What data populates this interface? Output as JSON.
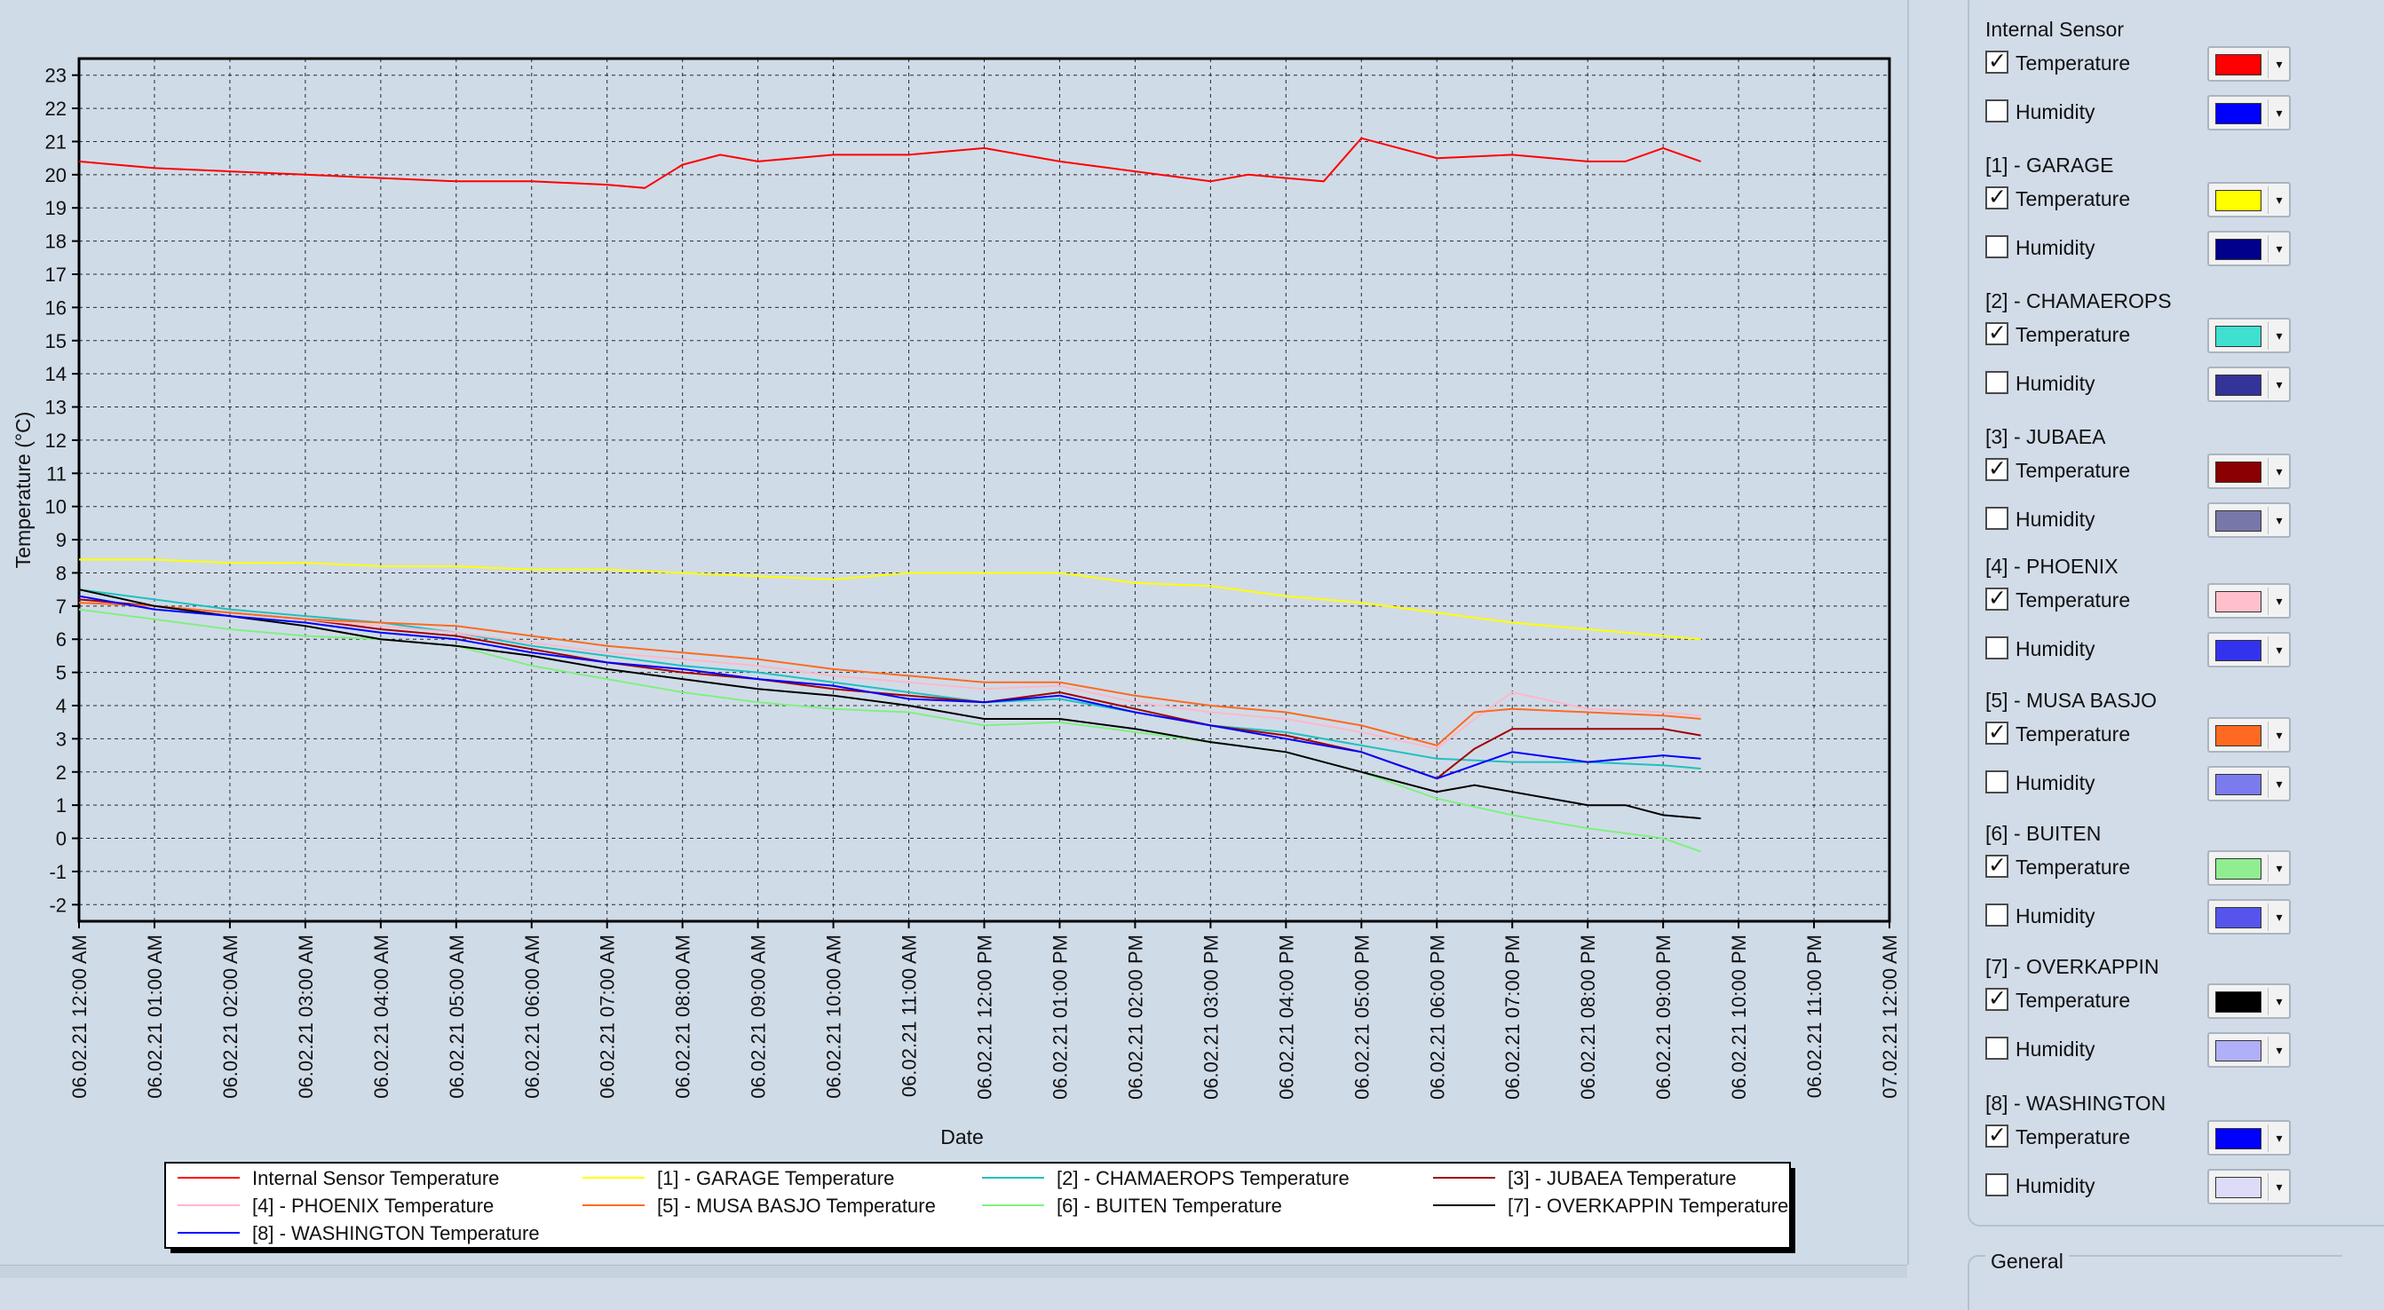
{
  "chart_data": {
    "type": "line",
    "title": "",
    "xlabel": "Date",
    "ylabel": "Temperature (°C)",
    "ylim": [
      -2.5,
      23.5
    ],
    "y_ticks": [
      "23",
      "22",
      "21",
      "20",
      "19",
      "18",
      "17",
      "16",
      "15",
      "14",
      "13",
      "12",
      "11",
      "10",
      "9",
      "8",
      "7",
      "6",
      "5",
      "4",
      "3",
      "2",
      "1",
      "0",
      "-1",
      "-2"
    ],
    "x_range": [
      "06.02.21 12:00 AM",
      "07.02.21 12:00 AM"
    ],
    "x_ticks": [
      "06.02.21 12:00 AM",
      "06.02.21 01:00 AM",
      "06.02.21 02:00 AM",
      "06.02.21 03:00 AM",
      "06.02.21 04:00 AM",
      "06.02.21 05:00 AM",
      "06.02.21 06:00 AM",
      "06.02.21 07:00 AM",
      "06.02.21 08:00 AM",
      "06.02.21 09:00 AM",
      "06.02.21 10:00 AM",
      "06.02.21 11:00 AM",
      "06.02.21 12:00 PM",
      "06.02.21 01:00 PM",
      "06.02.21 02:00 PM",
      "06.02.21 03:00 PM",
      "06.02.21 04:00 PM",
      "06.02.21 05:00 PM",
      "06.02.21 06:00 PM",
      "06.02.21 07:00 PM",
      "06.02.21 08:00 PM",
      "06.02.21 09:00 PM",
      "06.02.21 10:00 PM",
      "06.02.21 11:00 PM",
      "07.02.21 12:00 AM"
    ],
    "x_unit": "hours after 06.02.21 12:00 AM",
    "grid": true,
    "legend_position": "bottom",
    "series": [
      {
        "name": "Internal Sensor Temperature",
        "color": "#ff0000",
        "x": [
          0,
          1,
          2,
          3,
          4,
          5,
          6,
          7,
          7.5,
          8,
          8.5,
          9,
          10,
          11,
          12,
          13,
          14,
          15,
          15.5,
          16,
          16.5,
          17,
          18,
          19,
          20,
          20.5,
          21,
          21.5
        ],
        "y": [
          20.4,
          20.2,
          20.1,
          20.0,
          19.9,
          19.8,
          19.8,
          19.7,
          19.6,
          20.3,
          20.6,
          20.4,
          20.6,
          20.6,
          20.8,
          20.4,
          20.1,
          19.8,
          20.0,
          19.9,
          19.8,
          21.1,
          20.5,
          20.6,
          20.4,
          20.4,
          20.8,
          20.4
        ]
      },
      {
        "name": "[1] - GARAGE Temperature",
        "color": "#ffff00",
        "x": [
          0,
          1,
          2,
          3,
          4,
          5,
          6,
          7,
          8,
          9,
          10,
          11,
          12,
          13,
          14,
          15,
          16,
          17,
          18,
          19,
          20,
          21,
          21.5
        ],
        "y": [
          8.4,
          8.4,
          8.3,
          8.3,
          8.2,
          8.2,
          8.1,
          8.1,
          8.0,
          7.9,
          7.8,
          8.0,
          8.0,
          8.0,
          7.7,
          7.6,
          7.3,
          7.1,
          6.8,
          6.5,
          6.3,
          6.1,
          6.0
        ]
      },
      {
        "name": "[2] - CHAMAEROPS Temperature",
        "color": "#20c0c0",
        "x": [
          0,
          1,
          2,
          3,
          4,
          5,
          6,
          7,
          8,
          9,
          10,
          11,
          12,
          13,
          14,
          15,
          16,
          17,
          18,
          19,
          20,
          21,
          21.5
        ],
        "y": [
          7.5,
          7.2,
          6.9,
          6.7,
          6.5,
          6.2,
          5.8,
          5.5,
          5.2,
          5.0,
          4.7,
          4.4,
          4.1,
          4.2,
          3.8,
          3.4,
          3.2,
          2.8,
          2.4,
          2.3,
          2.3,
          2.2,
          2.1
        ]
      },
      {
        "name": "[3] - JUBAEA Temperature",
        "color": "#a00000",
        "x": [
          0,
          1,
          2,
          3,
          4,
          5,
          6,
          7,
          8,
          9,
          10,
          11,
          12,
          13,
          14,
          15,
          16,
          17,
          18,
          18.5,
          19,
          20,
          21,
          21.5
        ],
        "y": [
          7.2,
          7.0,
          6.8,
          6.6,
          6.3,
          6.1,
          5.7,
          5.3,
          5.0,
          4.8,
          4.5,
          4.3,
          4.1,
          4.4,
          3.9,
          3.4,
          3.1,
          2.6,
          1.8,
          2.7,
          3.3,
          3.3,
          3.3,
          3.1
        ]
      },
      {
        "name": "[4] - PHOENIX Temperature",
        "color": "#ffb8c8",
        "x": [
          0,
          1,
          2,
          3,
          4,
          5,
          6,
          7,
          8,
          9,
          10,
          11,
          12,
          13,
          14,
          15,
          16,
          17,
          18,
          18.5,
          19,
          20,
          21,
          21.5
        ],
        "y": [
          7.1,
          7.0,
          6.8,
          6.6,
          6.4,
          6.2,
          5.9,
          5.6,
          5.4,
          5.2,
          4.9,
          4.7,
          4.5,
          4.6,
          4.1,
          3.8,
          3.6,
          3.2,
          2.7,
          3.6,
          4.4,
          3.9,
          3.8,
          3.7
        ]
      },
      {
        "name": "[5] - MUSA BASJO Temperature",
        "color": "#ff6a20",
        "x": [
          0,
          1,
          2,
          3,
          4,
          5,
          6,
          7,
          8,
          9,
          10,
          11,
          12,
          13,
          14,
          15,
          16,
          17,
          18,
          18.5,
          19,
          20,
          21,
          21.5
        ],
        "y": [
          7.1,
          7.0,
          6.8,
          6.6,
          6.5,
          6.4,
          6.1,
          5.8,
          5.6,
          5.4,
          5.1,
          4.9,
          4.7,
          4.7,
          4.3,
          4.0,
          3.8,
          3.4,
          2.8,
          3.8,
          3.9,
          3.8,
          3.7,
          3.6
        ]
      },
      {
        "name": "[6] - BUITEN Temperature",
        "color": "#80f080",
        "x": [
          0,
          1,
          2,
          3,
          4,
          5,
          6,
          7,
          8,
          9,
          10,
          11,
          12,
          13,
          14,
          15,
          16,
          17,
          18,
          19,
          20,
          21,
          21.5
        ],
        "y": [
          6.9,
          6.6,
          6.3,
          6.1,
          6.0,
          5.8,
          5.2,
          4.8,
          4.4,
          4.1,
          3.9,
          3.8,
          3.4,
          3.5,
          3.2,
          2.9,
          2.6,
          2.0,
          1.2,
          0.7,
          0.3,
          0.0,
          -0.4
        ]
      },
      {
        "name": "[7] - OVERKAPPIN Temperature",
        "color": "#000000",
        "x": [
          0,
          1,
          2,
          3,
          4,
          5,
          6,
          7,
          8,
          9,
          10,
          11,
          12,
          13,
          14,
          15,
          16,
          17,
          18,
          18.5,
          19,
          20,
          20.5,
          21,
          21.5
        ],
        "y": [
          7.5,
          7.0,
          6.7,
          6.4,
          6.0,
          5.8,
          5.5,
          5.1,
          4.8,
          4.5,
          4.3,
          4.0,
          3.6,
          3.6,
          3.3,
          2.9,
          2.6,
          2.0,
          1.4,
          1.6,
          1.4,
          1.0,
          1.0,
          0.7,
          0.6
        ]
      },
      {
        "name": "[8] - WASHINGTON Temperature",
        "color": "#0000ff",
        "x": [
          0,
          1,
          2,
          3,
          4,
          5,
          6,
          7,
          8,
          9,
          10,
          11,
          12,
          13,
          14,
          15,
          16,
          17,
          18,
          19,
          20,
          21,
          21.5
        ],
        "y": [
          7.3,
          6.9,
          6.7,
          6.5,
          6.2,
          6.0,
          5.6,
          5.3,
          5.1,
          4.8,
          4.6,
          4.2,
          4.1,
          4.3,
          3.8,
          3.4,
          3.0,
          2.6,
          1.8,
          2.6,
          2.3,
          2.5,
          2.4
        ]
      }
    ]
  },
  "legend_items": [
    {
      "label": "Internal Sensor Temperature",
      "color": "#ff0000"
    },
    {
      "label": "[1] - GARAGE Temperature",
      "color": "#ffff00"
    },
    {
      "label": "[2] - CHAMAEROPS Temperature",
      "color": "#20c0c0"
    },
    {
      "label": "[3] - JUBAEA Temperature",
      "color": "#a00000"
    },
    {
      "label": "[4] - PHOENIX Temperature",
      "color": "#ffb8c8"
    },
    {
      "label": "[5] - MUSA BASJO Temperature",
      "color": "#ff6a20"
    },
    {
      "label": "[6] - BUITEN Temperature",
      "color": "#80f080"
    },
    {
      "label": "[7] - OVERKAPPIN Temperature",
      "color": "#000000"
    },
    {
      "label": "[8] - WASHINGTON Temperature",
      "color": "#0000ff"
    }
  ],
  "sensors": [
    {
      "name": "Internal Sensor",
      "temperature": {
        "label": "Temperature",
        "checked": true,
        "color": "#ff0000"
      },
      "humidity": {
        "label": "Humidity",
        "checked": false,
        "color": "#0000ff"
      }
    },
    {
      "name": "[1] - GARAGE",
      "temperature": {
        "label": "Temperature",
        "checked": true,
        "color": "#ffff00"
      },
      "humidity": {
        "label": "Humidity",
        "checked": false,
        "color": "#00008b"
      }
    },
    {
      "name": "[2] - CHAMAEROPS",
      "temperature": {
        "label": "Temperature",
        "checked": true,
        "color": "#40e0d0"
      },
      "humidity": {
        "label": "Humidity",
        "checked": false,
        "color": "#333399"
      }
    },
    {
      "name": "[3] - JUBAEA",
      "temperature": {
        "label": "Temperature",
        "checked": true,
        "color": "#8b0000"
      },
      "humidity": {
        "label": "Humidity",
        "checked": false,
        "color": "#7777aa"
      }
    },
    {
      "name": "[4] - PHOENIX",
      "temperature": {
        "label": "Temperature",
        "checked": true,
        "color": "#ffc0cb"
      },
      "humidity": {
        "label": "Humidity",
        "checked": false,
        "color": "#3333ee"
      }
    },
    {
      "name": "[5] - MUSA BASJO",
      "temperature": {
        "label": "Temperature",
        "checked": true,
        "color": "#ff6a20"
      },
      "humidity": {
        "label": "Humidity",
        "checked": false,
        "color": "#7b7bee"
      }
    },
    {
      "name": "[6] - BUITEN",
      "temperature": {
        "label": "Temperature",
        "checked": true,
        "color": "#90ee90"
      },
      "humidity": {
        "label": "Humidity",
        "checked": false,
        "color": "#5555ee"
      }
    },
    {
      "name": "[7] - OVERKAPPIN",
      "temperature": {
        "label": "Temperature",
        "checked": true,
        "color": "#000000"
      },
      "humidity": {
        "label": "Humidity",
        "checked": false,
        "color": "#b0b0f8"
      }
    },
    {
      "name": "[8] - WASHINGTON",
      "temperature": {
        "label": "Temperature",
        "checked": true,
        "color": "#0000ff"
      },
      "humidity": {
        "label": "Humidity",
        "checked": false,
        "color": "#dcdcf8"
      }
    }
  ],
  "general": {
    "title": "General"
  },
  "icons": {
    "checkmark": "check-icon",
    "dropdown": "chevron-down-icon"
  }
}
